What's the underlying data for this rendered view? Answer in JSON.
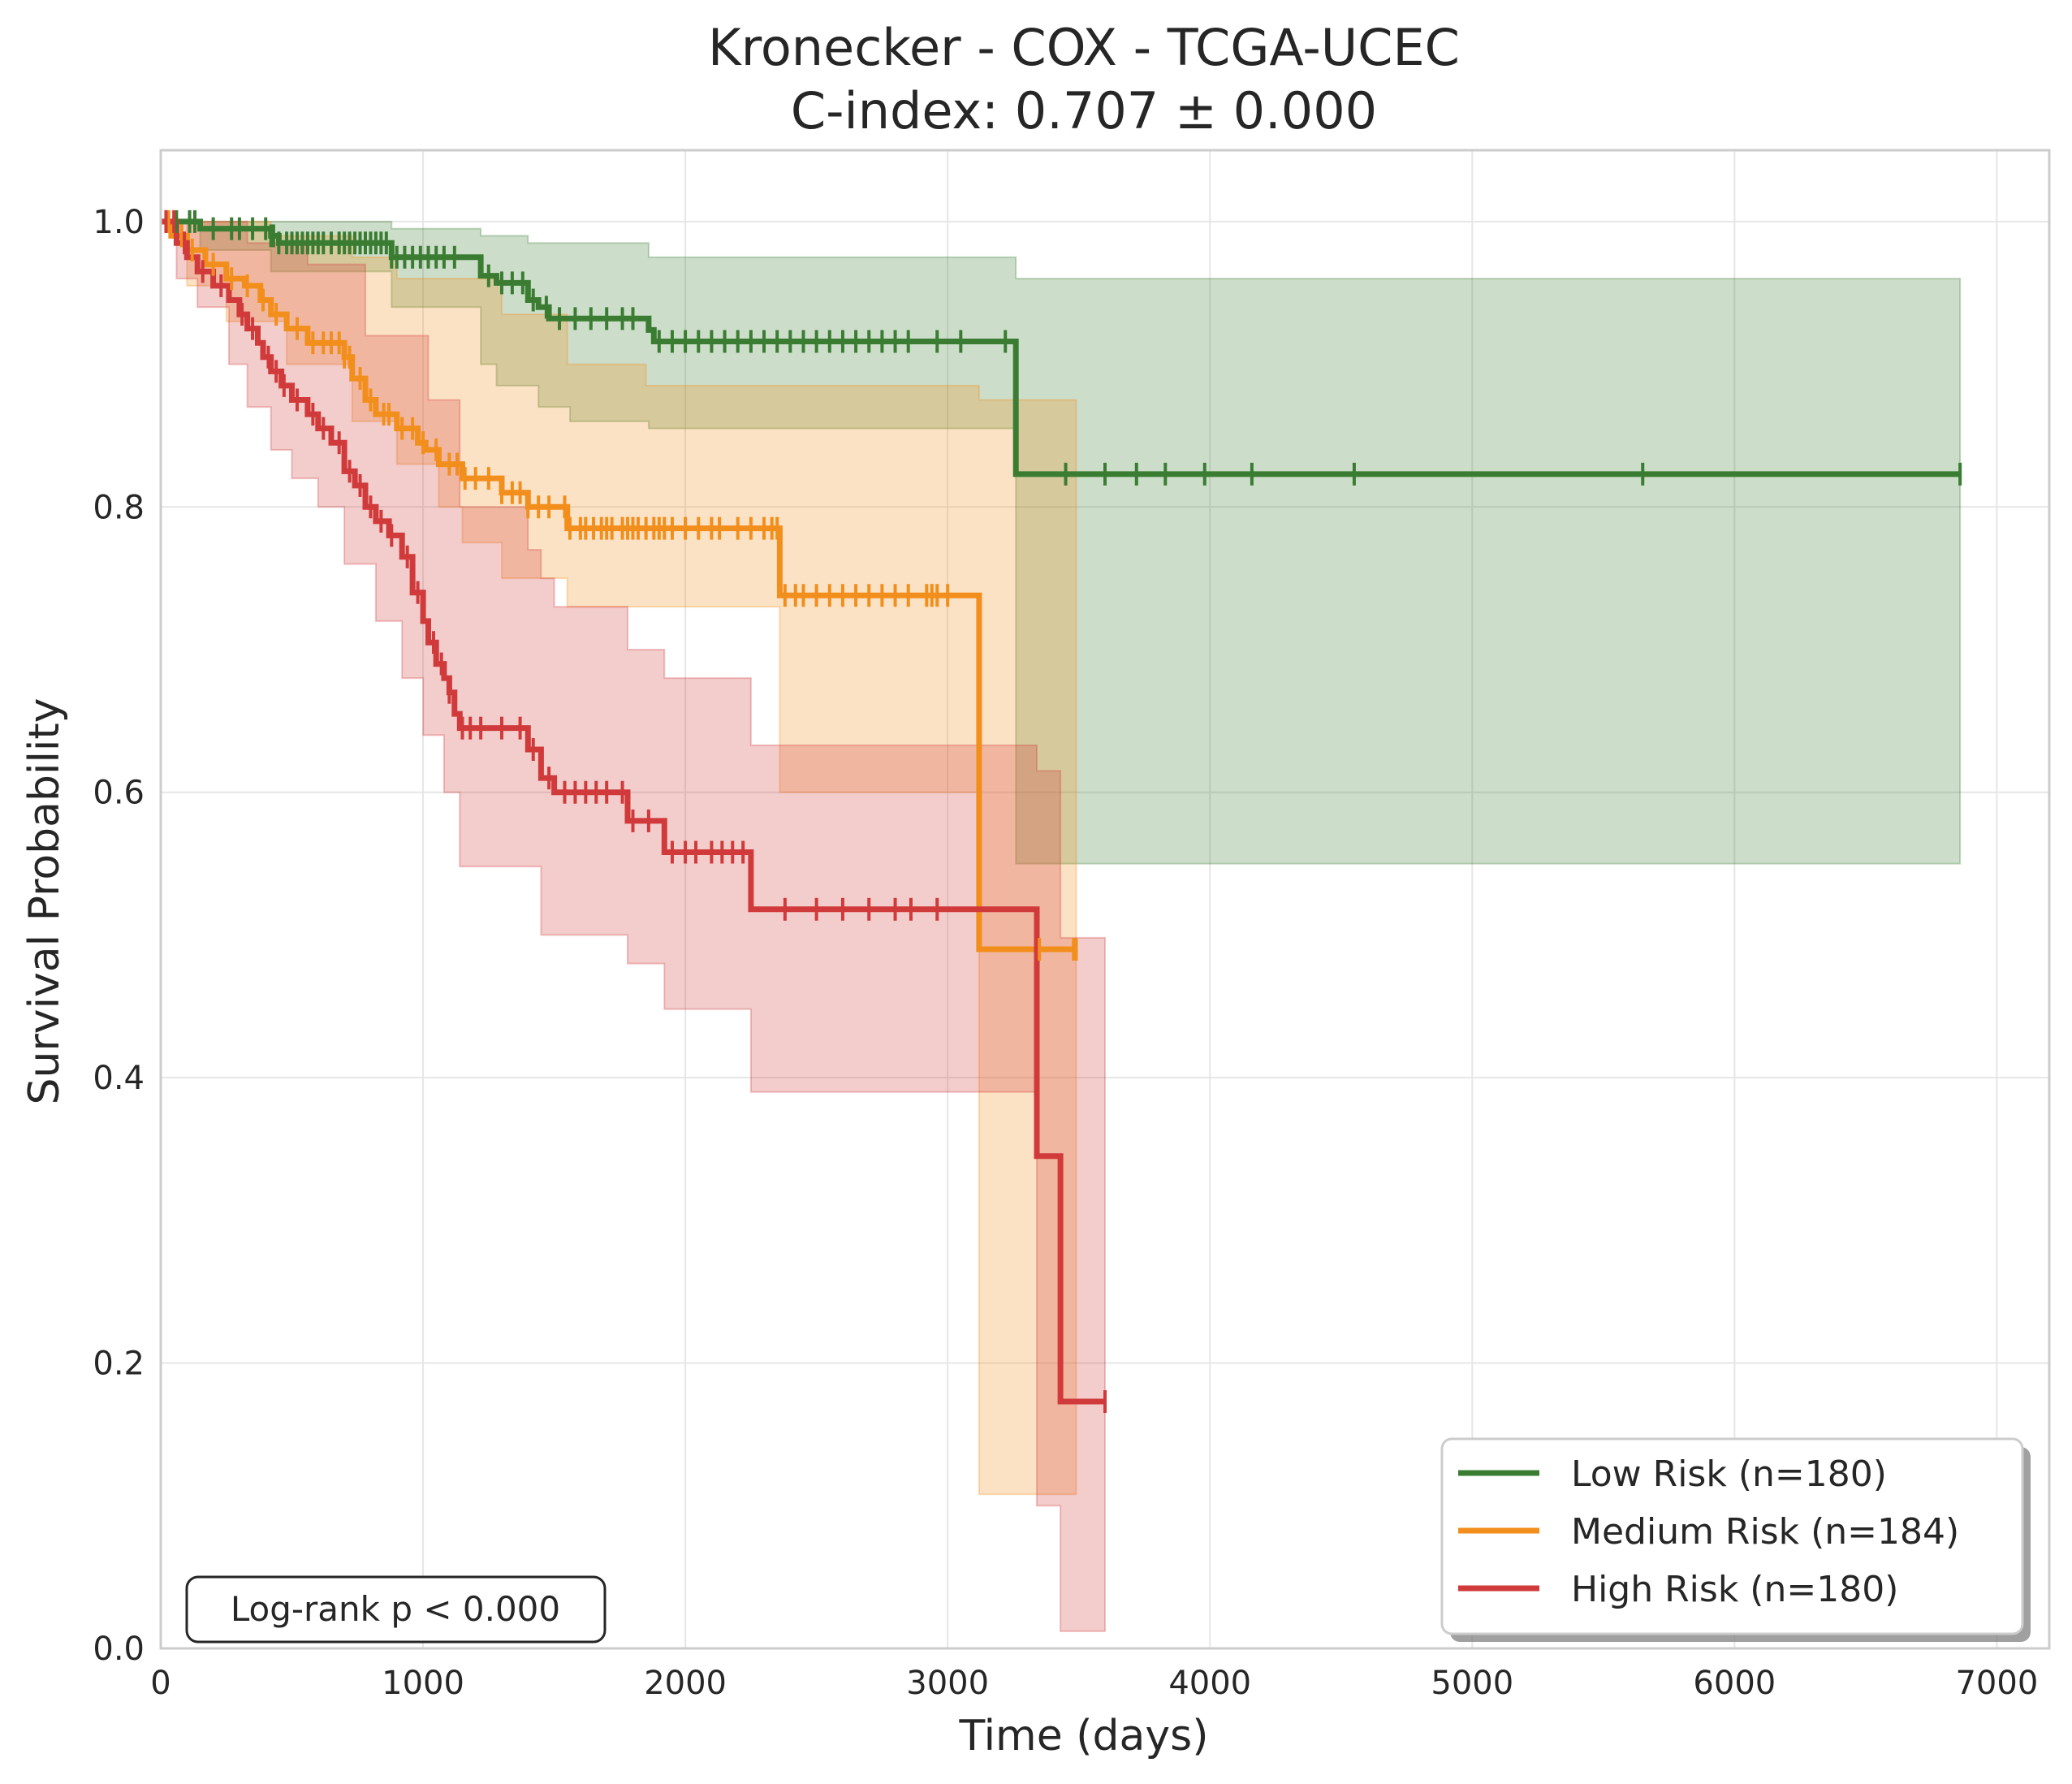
{
  "chart_data": {
    "type": "line",
    "subtype": "kaplan-meier",
    "title": "Kronecker - COX - TCGA-UCEC",
    "subtitle": "C-index: 0.707 ± 0.000",
    "xlabel": "Time (days)",
    "ylabel": "Survival Probability",
    "xlim": [
      0,
      7200
    ],
    "ylim": [
      0,
      1.05
    ],
    "xticks": [
      0,
      1000,
      2000,
      3000,
      4000,
      5000,
      6000,
      7000
    ],
    "xtick_labels": [
      "0",
      "1000",
      "2000",
      "3000",
      "4000",
      "5000",
      "6000",
      "7000"
    ],
    "yticks": [
      0,
      0.2,
      0.4,
      0.6,
      0.8,
      1.0
    ],
    "ytick_labels": [
      "0.0",
      "0.2",
      "0.4",
      "0.6",
      "0.8",
      "1.0"
    ],
    "grid": true,
    "legend_position": "bottom-right",
    "annotation": "Log-rank p < 0.000",
    "series": [
      {
        "name": "Low Risk (n=180)",
        "color": "#3a7d32",
        "steps": [
          [
            0,
            1.0
          ],
          [
            150,
            0.995
          ],
          [
            420,
            0.99
          ],
          [
            450,
            0.985
          ],
          [
            880,
            0.975
          ],
          [
            1220,
            0.962
          ],
          [
            1280,
            0.957
          ],
          [
            1400,
            0.945
          ],
          [
            1440,
            0.94
          ],
          [
            1480,
            0.932
          ],
          [
            1860,
            0.924
          ],
          [
            1880,
            0.916
          ],
          [
            3260,
            0.823
          ],
          [
            6860,
            0.823
          ]
        ],
        "lower": [
          [
            0,
            1.0
          ],
          [
            150,
            0.98
          ],
          [
            420,
            0.965
          ],
          [
            880,
            0.94
          ],
          [
            1220,
            0.9
          ],
          [
            1280,
            0.885
          ],
          [
            1440,
            0.87
          ],
          [
            1560,
            0.86
          ],
          [
            1860,
            0.855
          ],
          [
            3260,
            0.55
          ],
          [
            6860,
            0.55
          ]
        ],
        "upper": [
          [
            0,
            1.0
          ],
          [
            880,
            0.995
          ],
          [
            1220,
            0.99
          ],
          [
            1400,
            0.985
          ],
          [
            1860,
            0.975
          ],
          [
            3260,
            0.96
          ],
          [
            6860,
            0.94
          ]
        ],
        "censors": [
          20,
          60,
          110,
          130,
          200,
          270,
          300,
          350,
          400,
          420,
          430,
          450,
          480,
          500,
          520,
          540,
          560,
          580,
          600,
          620,
          650,
          680,
          700,
          720,
          740,
          760,
          780,
          800,
          820,
          840,
          860,
          880,
          900,
          930,
          960,
          990,
          1020,
          1050,
          1080,
          1120,
          1250,
          1300,
          1340,
          1380,
          1420,
          1470,
          1520,
          1580,
          1640,
          1700,
          1760,
          1800,
          1900,
          1950,
          2000,
          2050,
          2100,
          2150,
          2200,
          2250,
          2300,
          2350,
          2400,
          2450,
          2500,
          2550,
          2600,
          2650,
          2700,
          2750,
          2800,
          2850,
          2960,
          3050,
          3220,
          3450,
          3600,
          3720,
          3830,
          3980,
          4160,
          4550,
          5650,
          6860
        ]
      },
      {
        "name": "Medium Risk (n=184)",
        "color": "#f28e1c",
        "steps": [
          [
            0,
            1.0
          ],
          [
            40,
            0.99
          ],
          [
            100,
            0.98
          ],
          [
            170,
            0.97
          ],
          [
            250,
            0.96
          ],
          [
            320,
            0.955
          ],
          [
            380,
            0.945
          ],
          [
            420,
            0.935
          ],
          [
            480,
            0.925
          ],
          [
            560,
            0.915
          ],
          [
            700,
            0.905
          ],
          [
            730,
            0.89
          ],
          [
            780,
            0.875
          ],
          [
            820,
            0.865
          ],
          [
            900,
            0.855
          ],
          [
            980,
            0.845
          ],
          [
            1010,
            0.84
          ],
          [
            1060,
            0.83
          ],
          [
            1150,
            0.82
          ],
          [
            1300,
            0.81
          ],
          [
            1400,
            0.8
          ],
          [
            1550,
            0.785
          ],
          [
            2360,
            0.738
          ],
          [
            3120,
            0.49
          ],
          [
            3490,
            0.49
          ]
        ],
        "lower": [
          [
            0,
            1.0
          ],
          [
            100,
            0.955
          ],
          [
            250,
            0.93
          ],
          [
            480,
            0.9
          ],
          [
            730,
            0.86
          ],
          [
            900,
            0.83
          ],
          [
            1060,
            0.8
          ],
          [
            1150,
            0.775
          ],
          [
            1300,
            0.75
          ],
          [
            1550,
            0.73
          ],
          [
            2360,
            0.6
          ],
          [
            3120,
            0.108
          ],
          [
            3490,
            0.108
          ]
        ],
        "upper": [
          [
            0,
            1.0
          ],
          [
            420,
            0.99
          ],
          [
            730,
            0.975
          ],
          [
            900,
            0.96
          ],
          [
            1300,
            0.935
          ],
          [
            1550,
            0.9
          ],
          [
            1850,
            0.885
          ],
          [
            3120,
            0.875
          ],
          [
            3490,
            0.8
          ]
        ],
        "censors": [
          30,
          80,
          120,
          200,
          270,
          330,
          390,
          440,
          520,
          580,
          620,
          650,
          680,
          700,
          720,
          760,
          800,
          850,
          870,
          920,
          960,
          1000,
          1050,
          1100,
          1130,
          1160,
          1200,
          1250,
          1300,
          1340,
          1370,
          1400,
          1440,
          1480,
          1540,
          1560,
          1600,
          1620,
          1650,
          1680,
          1700,
          1720,
          1760,
          1780,
          1800,
          1820,
          1850,
          1880,
          1900,
          1920,
          1950,
          2000,
          2050,
          2100,
          2130,
          2200,
          2250,
          2300,
          2330,
          2350,
          2380,
          2420,
          2450,
          2500,
          2550,
          2600,
          2650,
          2700,
          2750,
          2800,
          2850,
          2920,
          2940,
          2960,
          3000,
          3350,
          3480,
          3490
        ]
      },
      {
        "name": "High Risk (n=180)",
        "color": "#d03a3a",
        "steps": [
          [
            0,
            1.0
          ],
          [
            60,
            0.985
          ],
          [
            100,
            0.975
          ],
          [
            140,
            0.965
          ],
          [
            200,
            0.955
          ],
          [
            260,
            0.945
          ],
          [
            300,
            0.935
          ],
          [
            330,
            0.925
          ],
          [
            370,
            0.915
          ],
          [
            390,
            0.905
          ],
          [
            420,
            0.895
          ],
          [
            460,
            0.885
          ],
          [
            500,
            0.875
          ],
          [
            560,
            0.865
          ],
          [
            600,
            0.855
          ],
          [
            650,
            0.845
          ],
          [
            700,
            0.825
          ],
          [
            740,
            0.815
          ],
          [
            780,
            0.8
          ],
          [
            820,
            0.79
          ],
          [
            870,
            0.78
          ],
          [
            920,
            0.765
          ],
          [
            960,
            0.74
          ],
          [
            1000,
            0.72
          ],
          [
            1020,
            0.705
          ],
          [
            1050,
            0.69
          ],
          [
            1080,
            0.68
          ],
          [
            1100,
            0.67
          ],
          [
            1120,
            0.655
          ],
          [
            1140,
            0.645
          ],
          [
            1400,
            0.63
          ],
          [
            1450,
            0.61
          ],
          [
            1500,
            0.6
          ],
          [
            1780,
            0.58
          ],
          [
            1920,
            0.558
          ],
          [
            2250,
            0.518
          ],
          [
            3340,
            0.345
          ],
          [
            3430,
            0.173
          ],
          [
            3600,
            0.173
          ]
        ],
        "lower": [
          [
            0,
            1.0
          ],
          [
            60,
            0.96
          ],
          [
            140,
            0.94
          ],
          [
            260,
            0.9
          ],
          [
            330,
            0.87
          ],
          [
            420,
            0.84
          ],
          [
            500,
            0.82
          ],
          [
            600,
            0.8
          ],
          [
            700,
            0.76
          ],
          [
            820,
            0.72
          ],
          [
            920,
            0.68
          ],
          [
            1000,
            0.64
          ],
          [
            1080,
            0.6
          ],
          [
            1140,
            0.548
          ],
          [
            1450,
            0.5
          ],
          [
            1780,
            0.48
          ],
          [
            1920,
            0.448
          ],
          [
            2250,
            0.39
          ],
          [
            3340,
            0.1
          ],
          [
            3430,
            0.012
          ],
          [
            3600,
            0.012
          ]
        ],
        "upper": [
          [
            0,
            1.0
          ],
          [
            330,
            0.985
          ],
          [
            560,
            0.97
          ],
          [
            780,
            0.92
          ],
          [
            1020,
            0.875
          ],
          [
            1140,
            0.8
          ],
          [
            1400,
            0.77
          ],
          [
            1450,
            0.75
          ],
          [
            1500,
            0.73
          ],
          [
            1780,
            0.7
          ],
          [
            1920,
            0.68
          ],
          [
            2250,
            0.633
          ],
          [
            3340,
            0.615
          ],
          [
            3430,
            0.498
          ],
          [
            3600,
            0.498
          ]
        ],
        "censors": [
          20,
          50,
          90,
          160,
          230,
          310,
          350,
          410,
          440,
          470,
          520,
          580,
          620,
          680,
          720,
          760,
          800,
          840,
          880,
          940,
          980,
          1040,
          1070,
          1100,
          1150,
          1180,
          1220,
          1300,
          1370,
          1420,
          1480,
          1540,
          1580,
          1620,
          1660,
          1700,
          1760,
          1800,
          1860,
          1950,
          2000,
          2040,
          2100,
          2140,
          2180,
          2220,
          2380,
          2500,
          2600,
          2700,
          2800,
          2860,
          2960,
          3600
        ]
      }
    ]
  }
}
